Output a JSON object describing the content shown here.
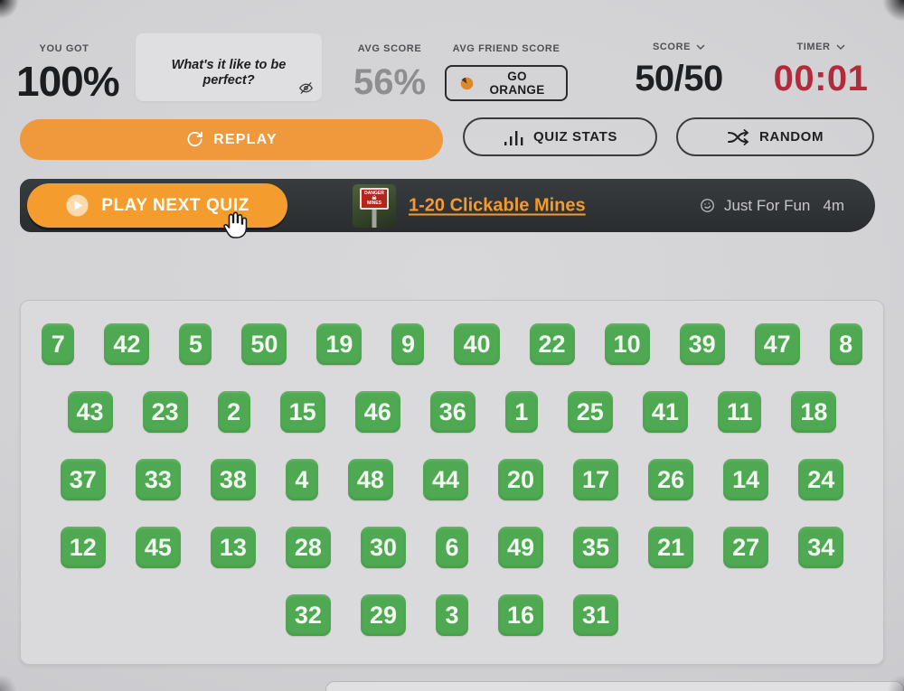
{
  "header": {
    "you_got_label": "YOU GOT",
    "you_got_value": "100%",
    "comment_text": "What's it like to be perfect?",
    "avg_score_label": "AVG SCORE",
    "avg_score_value": "56%",
    "avg_friend_score_label": "AVG FRIEND SCORE",
    "go_orange_label": "GO ORANGE",
    "score_label": "SCORE",
    "score_value": "50/50",
    "timer_label": "TIMER",
    "timer_value": "00:01"
  },
  "actions": {
    "replay": "REPLAY",
    "quiz_stats": "QUIZ STATS",
    "random": "RANDOM"
  },
  "next_quiz": {
    "play_button": "PLAY NEXT QUIZ",
    "link_title": "1-20 Clickable Mines",
    "category": "Just For Fun",
    "length": "4m",
    "thumb_sign_top": "DANGER",
    "thumb_sign_bottom": "MINES"
  },
  "colors": {
    "accent_orange": "#F0993C",
    "button_orange": "#F49D2E",
    "link_orange": "#F39B31",
    "tile_green": "#4FA952",
    "timer_red": "#B22B3A"
  },
  "grid": {
    "tile_rows": [
      [
        "7",
        "42",
        "5",
        "50",
        "19",
        "9",
        "40",
        "22",
        "10",
        "39",
        "47",
        "8"
      ],
      [
        "43",
        "23",
        "2",
        "15",
        "46",
        "36",
        "1",
        "25",
        "41",
        "11",
        "18"
      ],
      [
        "37",
        "33",
        "38",
        "4",
        "48",
        "44",
        "20",
        "17",
        "26",
        "14",
        "24"
      ],
      [
        "12",
        "45",
        "13",
        "28",
        "30",
        "6",
        "49",
        "35",
        "21",
        "27",
        "34"
      ],
      [
        "32",
        "29",
        "3",
        "16",
        "31"
      ]
    ]
  }
}
